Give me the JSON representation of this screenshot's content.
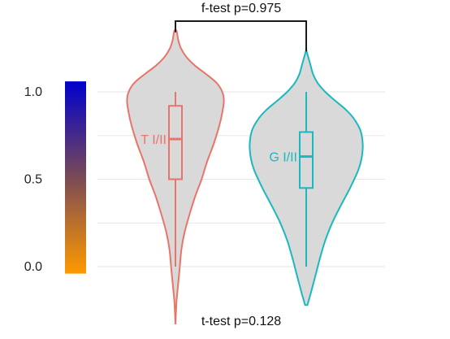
{
  "chart_data": {
    "type": "violin",
    "title": "",
    "xlabel": "",
    "ylabel": "",
    "ylim": [
      -0.05,
      1.08
    ],
    "yticks": [
      0.0,
      0.5,
      1.0
    ],
    "ytick_labels": [
      "0.0",
      "0.5",
      "1.0"
    ],
    "grid": true,
    "legend": "none",
    "colorbar": {
      "low_color": "#ff9900",
      "mid_color": "#7a4a55",
      "high_color": "#0000cc",
      "range": [
        -0.04,
        1.06
      ]
    },
    "series": [
      {
        "name": "T I/II",
        "color": "#e8756a",
        "fill": "#d9d9d9",
        "box": {
          "whisker_low": 0.0,
          "q1": 0.5,
          "median": 0.73,
          "q3": 0.92,
          "whisker_high": 1.0
        },
        "violin_range": [
          -0.33,
          1.35
        ],
        "density": [
          [
            -0.33,
            0.0
          ],
          [
            -0.2,
            0.02
          ],
          [
            -0.1,
            0.05
          ],
          [
            0.0,
            0.08
          ],
          [
            0.1,
            0.11
          ],
          [
            0.2,
            0.17
          ],
          [
            0.3,
            0.26
          ],
          [
            0.4,
            0.36
          ],
          [
            0.5,
            0.48
          ],
          [
            0.6,
            0.58
          ],
          [
            0.7,
            0.7
          ],
          [
            0.8,
            0.8
          ],
          [
            0.88,
            0.86
          ],
          [
            0.95,
            0.89
          ],
          [
            1.0,
            0.86
          ],
          [
            1.05,
            0.76
          ],
          [
            1.1,
            0.57
          ],
          [
            1.15,
            0.36
          ],
          [
            1.2,
            0.2
          ],
          [
            1.25,
            0.1
          ],
          [
            1.3,
            0.05
          ],
          [
            1.35,
            0.02
          ]
        ]
      },
      {
        "name": "G I/II",
        "color": "#1ab8c0",
        "fill": "#d9d9d9",
        "box": {
          "whisker_low": 0.0,
          "q1": 0.45,
          "median": 0.63,
          "q3": 0.77,
          "whisker_high": 1.0
        },
        "violin_range": [
          -0.22,
          1.24
        ],
        "density": [
          [
            -0.22,
            0.02
          ],
          [
            -0.15,
            0.08
          ],
          [
            -0.05,
            0.16
          ],
          [
            0.05,
            0.24
          ],
          [
            0.15,
            0.33
          ],
          [
            0.25,
            0.45
          ],
          [
            0.35,
            0.6
          ],
          [
            0.45,
            0.76
          ],
          [
            0.55,
            0.9
          ],
          [
            0.62,
            0.96
          ],
          [
            0.7,
            0.98
          ],
          [
            0.78,
            0.94
          ],
          [
            0.85,
            0.82
          ],
          [
            0.9,
            0.68
          ],
          [
            0.95,
            0.5
          ],
          [
            1.0,
            0.33
          ],
          [
            1.05,
            0.2
          ],
          [
            1.1,
            0.12
          ],
          [
            1.17,
            0.06
          ],
          [
            1.24,
            0.0
          ]
        ]
      }
    ],
    "annotations": {
      "top": "f-test p=0.975",
      "bottom": "t-test p=0.128"
    }
  }
}
